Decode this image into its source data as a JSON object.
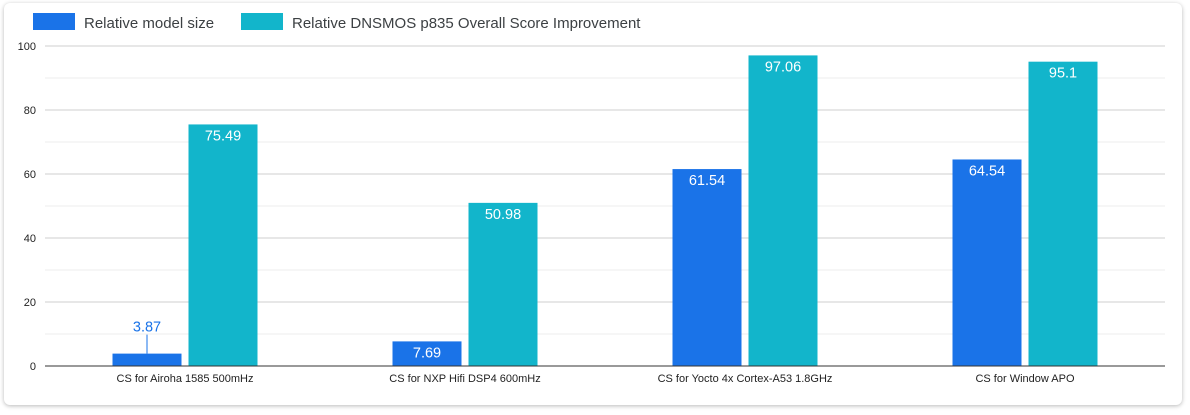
{
  "chart_data": {
    "type": "bar",
    "categories": [
      "CS for Airoha 1585 500mHz",
      "CS for NXP Hifi DSP4 600mHz",
      "CS for Yocto 4x Cortex-A53 1.8GHz",
      "CS for Window APO"
    ],
    "series": [
      {
        "name": "Relative model size",
        "color": "#1a73e8",
        "values": [
          3.87,
          7.69,
          61.54,
          64.54
        ],
        "labels": [
          "3.87",
          "7.69",
          "61.54",
          "64.54"
        ]
      },
      {
        "name": "Relative DNSMOS p835 Overall Score Improvement",
        "color": "#12b5cb",
        "values": [
          75.49,
          50.98,
          97.06,
          95.1
        ],
        "labels": [
          "75.49",
          "50.98",
          "97.06",
          "95.1"
        ]
      }
    ],
    "ylim": [
      0,
      100
    ],
    "yticks": [
      "0",
      "20",
      "40",
      "60",
      "80",
      "100"
    ],
    "grid": true,
    "legend_position": "top-left",
    "title": "",
    "xlabel": "",
    "ylabel": ""
  }
}
